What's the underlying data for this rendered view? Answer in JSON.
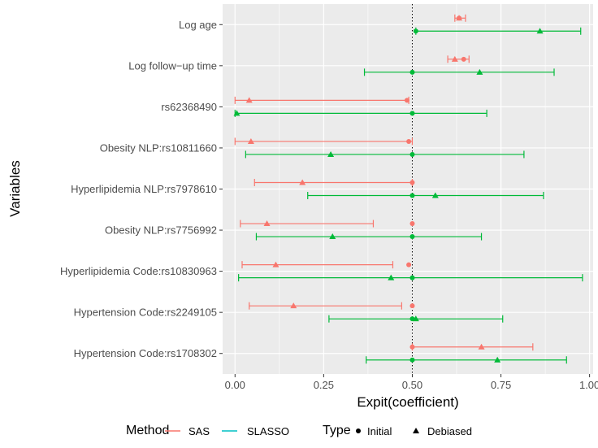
{
  "chart_data": {
    "type": "forest",
    "xlabel": "Expit(coefficient)",
    "ylabel": "Variables",
    "xlim": [
      -0.035,
      1.01
    ],
    "x_ticks": [
      0.0,
      0.25,
      0.5,
      0.75,
      1.0
    ],
    "x_tick_labels": [
      "0.00",
      "0.25",
      "0.50",
      "0.75",
      "1.00"
    ],
    "reference_line": 0.5,
    "grid": true,
    "legend_position": "bottom",
    "colors": {
      "SAS": "#F8766D",
      "SLASSO": "#00BA38",
      "panel": "#EBEBEB",
      "grid": "#FFFFFF"
    },
    "legend": {
      "method_title": "Method",
      "method_items": [
        "SAS",
        "SLASSO"
      ],
      "type_title": "Type",
      "type_items": [
        "Initial",
        "Debiased"
      ]
    },
    "variables": [
      "Log age",
      "Log follow−up time",
      "rs62368490",
      "Obesity NLP:rs10811660",
      "Hyperlipidemia NLP:rs7978610",
      "Obesity NLP:rs7756992",
      "Hyperlipidemia Code:rs10830963",
      "Hypertension Code:rs2249105",
      "Hypertension Code:rs1708302"
    ],
    "series": [
      {
        "name": "SAS",
        "initial": [
          0.632,
          0.645,
          0.485,
          0.49,
          0.5,
          0.5,
          0.49,
          0.5,
          0.5
        ],
        "debiased": [
          0.632,
          0.62,
          0.04,
          0.045,
          0.19,
          0.09,
          0.115,
          0.165,
          0.695
        ],
        "lower": [
          0.62,
          0.6,
          0.0,
          0.0,
          0.055,
          0.015,
          0.02,
          0.04,
          0.5
        ],
        "upper": [
          0.65,
          0.66,
          0.49,
          0.5,
          0.5,
          0.39,
          0.445,
          0.47,
          0.84
        ]
      },
      {
        "name": "SLASSO",
        "initial": [
          0.51,
          0.5,
          0.5,
          0.5,
          0.5,
          0.5,
          0.5,
          0.5,
          0.5
        ],
        "debiased": [
          0.86,
          0.69,
          0.005,
          0.27,
          0.565,
          0.275,
          0.44,
          0.51,
          0.74
        ],
        "lower": [
          0.51,
          0.365,
          0.0,
          0.03,
          0.205,
          0.06,
          0.01,
          0.265,
          0.37
        ],
        "upper": [
          0.975,
          0.9,
          0.71,
          0.815,
          0.87,
          0.695,
          0.98,
          0.755,
          0.935
        ]
      }
    ]
  }
}
